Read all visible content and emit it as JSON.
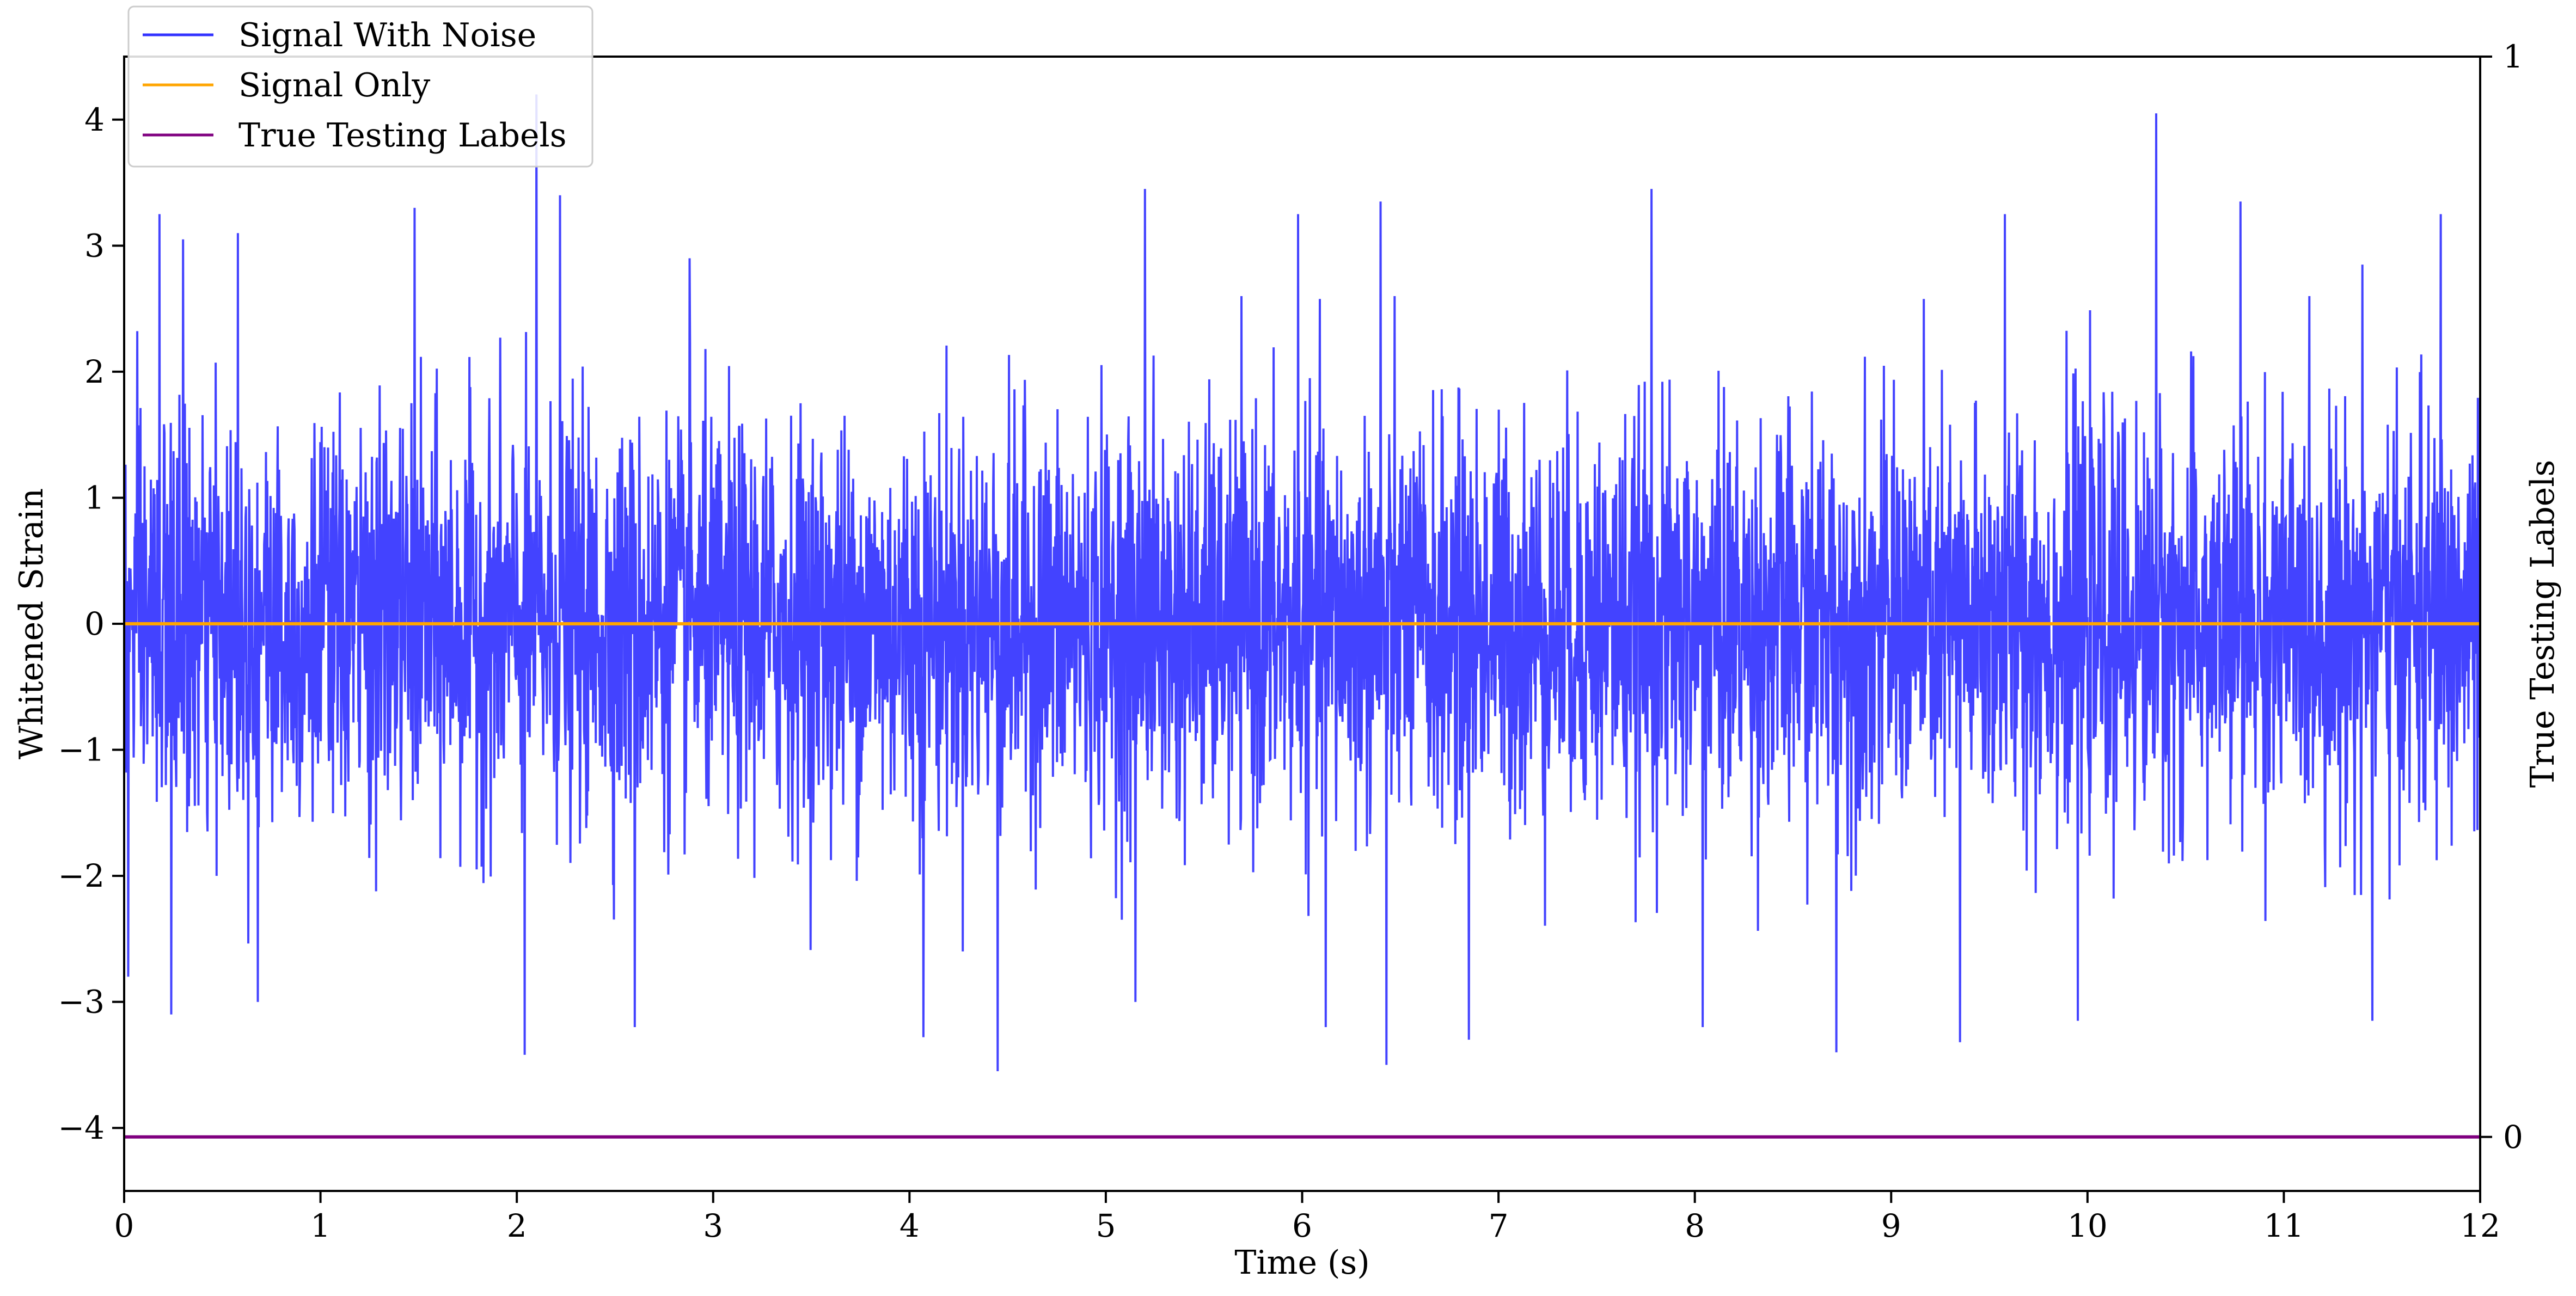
{
  "chart_data": {
    "type": "line",
    "title": "",
    "xlabel": "Time (s)",
    "ylabel": "Whitened Strain",
    "y2label": "True Testing Labels",
    "xlim": [
      0,
      12
    ],
    "ylim": [
      -4.5,
      4.5
    ],
    "y2lim": [
      -0.05,
      1
    ],
    "x_ticks": [
      "0",
      "1",
      "2",
      "3",
      "4",
      "5",
      "6",
      "7",
      "8",
      "9",
      "10",
      "11",
      "12"
    ],
    "y_ticks": [
      "4",
      "3",
      "2",
      "1",
      "0",
      "−1",
      "−2",
      "−3",
      "−4"
    ],
    "y2_ticks": [
      "1",
      "0"
    ],
    "grid": false,
    "legend_position": "top-left",
    "series": [
      {
        "name": "Signal With Noise",
        "axis": "left",
        "color": "#3333ff",
        "description_values": "dense noise, mostly within [-2, 2], spikes up to about 4.2 near t=2.1 and t=10.35, dips to about -3.55 near t=4.45",
        "x_range": [
          0,
          12
        ],
        "peaks": [
          {
            "x": 0.02,
            "y": 2.75
          },
          {
            "x": 0.18,
            "y": 3.25
          },
          {
            "x": 0.3,
            "y": 3.05
          },
          {
            "x": 0.58,
            "y": 3.1
          },
          {
            "x": 1.48,
            "y": 3.3
          },
          {
            "x": 2.1,
            "y": 4.2
          },
          {
            "x": 2.22,
            "y": 3.4
          },
          {
            "x": 2.88,
            "y": 2.9
          },
          {
            "x": 5.2,
            "y": 3.45
          },
          {
            "x": 5.98,
            "y": 3.25
          },
          {
            "x": 6.4,
            "y": 3.35
          },
          {
            "x": 7.78,
            "y": 3.45
          },
          {
            "x": 9.58,
            "y": 3.25
          },
          {
            "x": 10.35,
            "y": 4.05
          },
          {
            "x": 10.78,
            "y": 3.35
          },
          {
            "x": 11.4,
            "y": 2.85
          },
          {
            "x": 11.8,
            "y": 3.25
          }
        ],
        "troughs": [
          {
            "x": 0.02,
            "y": -2.8
          },
          {
            "x": 0.24,
            "y": -3.1
          },
          {
            "x": 0.68,
            "y": -3.0
          },
          {
            "x": 2.04,
            "y": -3.42
          },
          {
            "x": 2.6,
            "y": -3.2
          },
          {
            "x": 4.07,
            "y": -3.28
          },
          {
            "x": 4.45,
            "y": -3.55
          },
          {
            "x": 5.15,
            "y": -3.0
          },
          {
            "x": 6.12,
            "y": -3.2
          },
          {
            "x": 6.43,
            "y": -3.5
          },
          {
            "x": 6.85,
            "y": -3.3
          },
          {
            "x": 8.04,
            "y": -3.2
          },
          {
            "x": 8.72,
            "y": -3.4
          },
          {
            "x": 9.35,
            "y": -3.32
          },
          {
            "x": 9.95,
            "y": -3.15
          },
          {
            "x": 11.45,
            "y": -3.15
          }
        ]
      },
      {
        "name": "Signal Only",
        "axis": "left",
        "color": "#ffa500",
        "x": [
          0,
          12
        ],
        "values": [
          0,
          0
        ]
      },
      {
        "name": "True Testing Labels",
        "axis": "right",
        "color": "#800080",
        "x": [
          0,
          12
        ],
        "values": [
          0,
          0
        ]
      }
    ]
  }
}
